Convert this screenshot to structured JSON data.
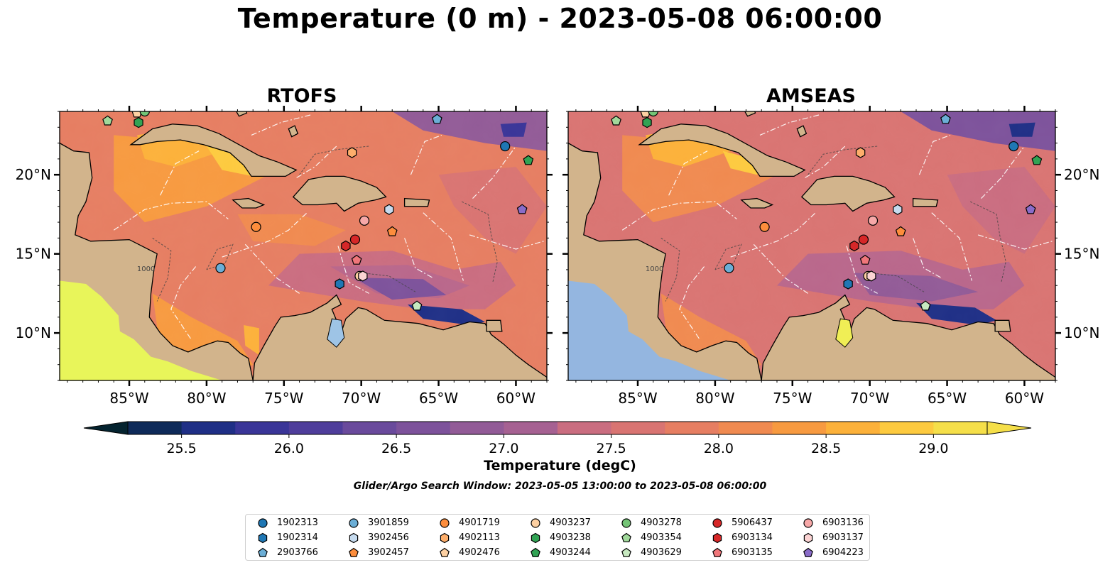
{
  "title": "Temperature (0 m) - 2023-05-08 06:00:00",
  "panels": [
    {
      "title": "RTOFS"
    },
    {
      "title": "AMSEAS"
    }
  ],
  "map": {
    "lon_range": [
      -89.5,
      -58
    ],
    "lat_range": [
      7,
      24
    ],
    "lon_ticks": [
      -85,
      -80,
      -75,
      -70,
      -65,
      -60
    ],
    "lon_tick_labels": [
      "85°W",
      "80°W",
      "75°W",
      "70°W",
      "65°W",
      "60°W"
    ],
    "lat_ticks": [
      10,
      15,
      20
    ],
    "lat_tick_labels": [
      "10°N",
      "15°N",
      "20°N"
    ],
    "land_color": "#d2b48c",
    "lake_color": "#9ec4e6",
    "contour_labels": [
      "1000"
    ]
  },
  "colorbar": {
    "label": "Temperature (degC)",
    "min": 25.25,
    "max": 29.25,
    "step": 0.25,
    "ticks": [
      25.5,
      26.0,
      26.5,
      27.0,
      27.5,
      28.0,
      28.5,
      29.0
    ],
    "tick_labels": [
      "25.5",
      "26.0",
      "26.5",
      "27.0",
      "27.5",
      "28.0",
      "28.5",
      "29.0"
    ],
    "extend": "both",
    "colormap": "thermal"
  },
  "search_window": "Glider/Argo Search Window: 2023-05-05 13:00:00 to 2023-05-08 06:00:00",
  "floats": [
    {
      "id": "1902313",
      "marker": "circle",
      "color": "#1f77b4",
      "lon": -60.7,
      "lat": 21.8
    },
    {
      "id": "1902314",
      "marker": "hexagon",
      "color": "#1f77b4",
      "lon": -71.4,
      "lat": 13.1
    },
    {
      "id": "2903766",
      "marker": "pentagon",
      "color": "#6baed6",
      "lon": -65.1,
      "lat": 23.5
    },
    {
      "id": "3901859",
      "marker": "circle",
      "color": "#6baed6",
      "lon": -79.1,
      "lat": 14.1
    },
    {
      "id": "3902456",
      "marker": "hexagon",
      "color": "#c6dbef",
      "lon": -68.2,
      "lat": 17.8
    },
    {
      "id": "3902457",
      "marker": "pentagon",
      "color": "#fd8d3c",
      "lon": -68.0,
      "lat": 16.4
    },
    {
      "id": "4901719",
      "marker": "circle",
      "color": "#fd8d3c",
      "lon": -76.8,
      "lat": 16.7
    },
    {
      "id": "4902113",
      "marker": "hexagon",
      "color": "#fdae6b",
      "lon": -70.6,
      "lat": 21.4
    },
    {
      "id": "4902476",
      "marker": "pentagon",
      "color": "#fdd0a2",
      "lon": -84.5,
      "lat": 23.9
    },
    {
      "id": "4903237",
      "marker": "circle",
      "color": "#fdd0a2",
      "lon": -70.1,
      "lat": 13.6
    },
    {
      "id": "4903238",
      "marker": "hexagon",
      "color": "#31a354",
      "lon": -84.4,
      "lat": 23.3
    },
    {
      "id": "4903244",
      "marker": "pentagon",
      "color": "#31a354",
      "lon": -59.2,
      "lat": 20.9
    },
    {
      "id": "4903278",
      "marker": "circle",
      "color": "#74c476",
      "lon": -84.0,
      "lat": 24.0
    },
    {
      "id": "4903354",
      "marker": "pentagon",
      "color": "#a1d99b",
      "lon": -86.4,
      "lat": 23.4
    },
    {
      "id": "4903629",
      "marker": "pentagon",
      "color": "#c7e9c0",
      "lon": -66.4,
      "lat": 11.7
    },
    {
      "id": "5906437",
      "marker": "circle",
      "color": "#d62728",
      "lon": -70.4,
      "lat": 15.9
    },
    {
      "id": "6903134",
      "marker": "hexagon",
      "color": "#d62728",
      "lon": -71.0,
      "lat": 15.5
    },
    {
      "id": "6903135",
      "marker": "pentagon",
      "color": "#f0767a",
      "lon": -70.3,
      "lat": 14.6
    },
    {
      "id": "6903136",
      "marker": "circle",
      "color": "#f7a8a8",
      "lon": -69.8,
      "lat": 17.1
    },
    {
      "id": "6903137",
      "marker": "hexagon",
      "color": "#fbd3d3",
      "lon": -69.9,
      "lat": 13.6
    },
    {
      "id": "6904223",
      "marker": "pentagon",
      "color": "#8a6cc9",
      "lon": -59.6,
      "lat": 17.8
    }
  ]
}
